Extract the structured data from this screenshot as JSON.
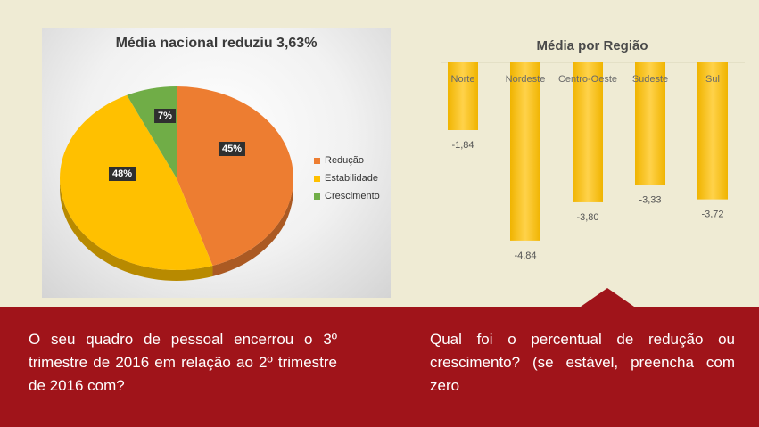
{
  "chart_data": [
    {
      "type": "pie",
      "title": "Média nacional reduziu 3,63%",
      "categories": [
        "Redução",
        "Estabilidade",
        "Crescimento"
      ],
      "values": [
        45,
        48,
        7
      ],
      "labels": [
        "45%",
        "48%",
        "7%"
      ],
      "colors": [
        "#ed7d31",
        "#ffc000",
        "#70ad47"
      ],
      "legend_position": "right"
    },
    {
      "type": "bar",
      "title": "Média por Região",
      "categories": [
        "Norte",
        "Nordeste",
        "Centro-Oeste",
        "Sudeste",
        "Sul"
      ],
      "values": [
        -1.84,
        -4.84,
        -3.8,
        -3.33,
        -3.72
      ],
      "labels": [
        "-1,84",
        "-4,84",
        "-3,80",
        "-3,33",
        "-3,72"
      ],
      "color": "#ffc000",
      "ylim": [
        -5,
        0
      ]
    }
  ],
  "footer": {
    "left_text": "O seu quadro de pessoal encerrou o 3º trimestre de 2016 em relação ao 2º trimestre de 2016 com?",
    "right_text": "Qual foi o percentual de redução ou crescimento? (se estável, preencha com zero"
  }
}
